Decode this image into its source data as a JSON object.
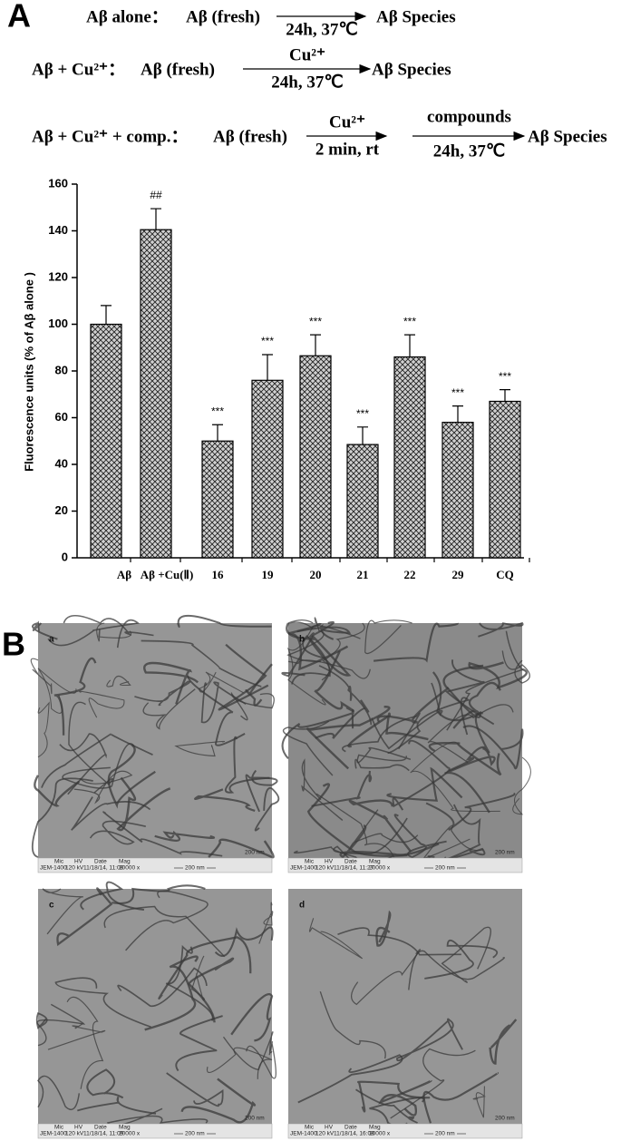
{
  "panel_a": {
    "label": "A",
    "scheme": [
      {
        "condition": "Aβ alone：",
        "start": "Aβ (fresh)",
        "steps": [
          {
            "above": null,
            "below": "24h, 37℃"
          }
        ],
        "product": "Aβ Species"
      },
      {
        "condition": "Aβ + Cu²⁺：",
        "start": "Aβ (fresh)",
        "steps": [
          {
            "above": "Cu²⁺",
            "below": "24h, 37℃"
          }
        ],
        "product": "Aβ Species"
      },
      {
        "condition": "Aβ + Cu²⁺ + comp.：",
        "start": "Aβ (fresh)",
        "steps": [
          {
            "above": "Cu²⁺",
            "below": "2 min, rt"
          },
          {
            "above": "compounds",
            "below": "24h, 37℃"
          }
        ],
        "product": "Aβ Species"
      }
    ]
  },
  "chart_data": {
    "type": "bar",
    "y_label": "Fluorescence units (% of Aβ  alone )",
    "categories": [
      "Aβ",
      "Aβ +Cu(Ⅱ)",
      "16",
      "19",
      "20",
      "21",
      "22",
      "29",
      "CQ"
    ],
    "values": [
      100,
      140.5,
      50,
      76,
      86.5,
      48.5,
      86,
      58,
      67
    ],
    "errors": [
      8,
      9,
      7,
      11,
      9,
      7.5,
      9.5,
      7,
      5
    ],
    "annotations": [
      null,
      "##",
      "***",
      "***",
      "***",
      "***",
      "***",
      "***",
      "***"
    ],
    "ylim": [
      0,
      160
    ],
    "yticks": [
      0,
      20,
      40,
      60,
      80,
      100,
      120,
      140,
      160
    ],
    "color": "#c8c8c8"
  },
  "panel_b": {
    "label": "B",
    "info_headers": [
      "Mic",
      "HV",
      "Date",
      "Mag"
    ],
    "images": [
      {
        "label": "a",
        "instrument": "JEM-1400",
        "hv": "120 kV",
        "date": "11/18/14, 11:08",
        "mag": "20000 x",
        "scale": "200 nm"
      },
      {
        "label": "b",
        "instrument": "JEM-1400",
        "hv": "120 kV",
        "date": "11/18/14, 11:27",
        "mag": "20000 x",
        "scale": "200 nm"
      },
      {
        "label": "c",
        "instrument": "JEM-1400",
        "hv": "120 kV",
        "date": "11/18/14, 11:09",
        "mag": "20000 x",
        "scale": "200 nm"
      },
      {
        "label": "d",
        "instrument": "JEM-1400",
        "hv": "120 kV",
        "date": "11/18/14, 16:08",
        "mag": "20000 x",
        "scale": "200 nm"
      }
    ]
  }
}
